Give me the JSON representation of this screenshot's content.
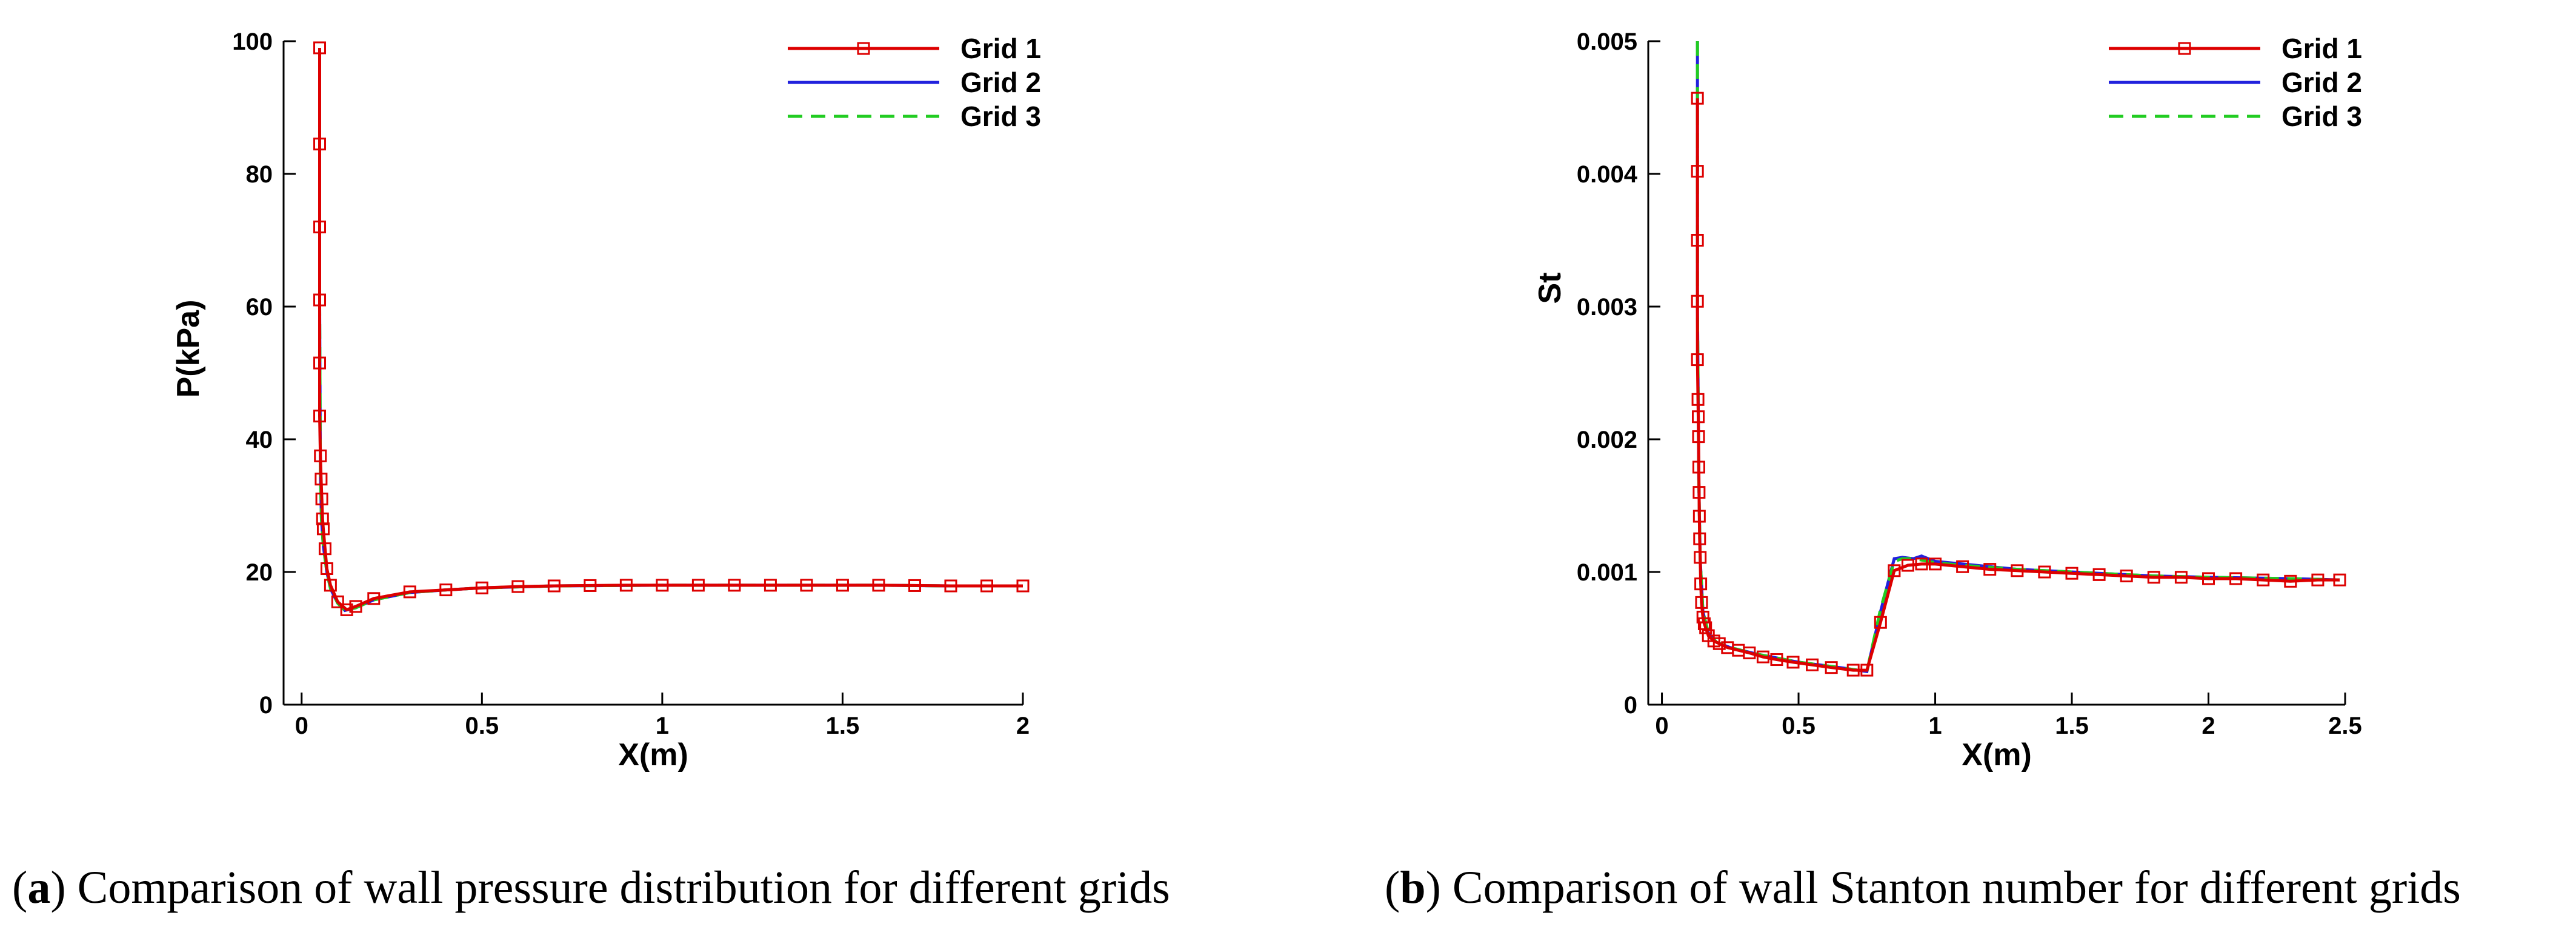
{
  "chart_data": [
    {
      "type": "line",
      "panel": "a",
      "caption_letter": "a",
      "caption_text": "Comparison of wall pressure distribution for different grids",
      "xlabel": "X(m)",
      "ylabel": "P(kPa)",
      "xlim": [
        -0.05,
        2
      ],
      "ylim": [
        0,
        100
      ],
      "xticks": [
        0,
        0.5,
        1,
        1.5,
        2
      ],
      "xtick_labels": [
        "0",
        "0.5",
        "1",
        "1.5",
        "2"
      ],
      "yticks": [
        0,
        20,
        40,
        60,
        80,
        100
      ],
      "ytick_labels": [
        "0",
        "20",
        "40",
        "60",
        "80",
        "100"
      ],
      "legend_position": "top-right",
      "series": [
        {
          "name": "Grid 1",
          "color": "#dd0000",
          "style": "solid",
          "marker": "square",
          "x": [
            0.05,
            0.05,
            0.05,
            0.05,
            0.05,
            0.05,
            0.052,
            0.054,
            0.056,
            0.058,
            0.06,
            0.065,
            0.07,
            0.08,
            0.1,
            0.125,
            0.15,
            0.2,
            0.3,
            0.4,
            0.5,
            0.6,
            0.7,
            0.8,
            0.9,
            1.0,
            1.1,
            1.2,
            1.3,
            1.4,
            1.5,
            1.6,
            1.7,
            1.8,
            1.9,
            2.0
          ],
          "y": [
            99,
            84.5,
            72,
            61,
            51.5,
            43.5,
            37.5,
            34,
            31,
            28,
            26.5,
            23.5,
            20.5,
            18,
            15.5,
            14.3,
            14.8,
            16,
            17,
            17.3,
            17.6,
            17.8,
            17.9,
            17.95,
            18,
            18,
            18,
            18,
            18,
            18,
            18,
            18,
            17.95,
            17.9,
            17.9,
            17.9
          ]
        },
        {
          "name": "Grid 2",
          "color": "#2222dd",
          "style": "solid",
          "marker": "none",
          "x": [
            0.05,
            0.05,
            0.052,
            0.055,
            0.06,
            0.07,
            0.08,
            0.1,
            0.12,
            0.15,
            0.2,
            0.3,
            0.4,
            0.5,
            0.7,
            1.0,
            1.3,
            1.6,
            1.8,
            2.0
          ],
          "y": [
            99,
            60,
            35,
            28,
            24,
            20,
            17.5,
            15.3,
            14.2,
            14.6,
            15.8,
            16.9,
            17.3,
            17.6,
            17.9,
            18,
            18,
            18,
            17.9,
            17.9
          ]
        },
        {
          "name": "Grid 3",
          "color": "#22cc22",
          "style": "dashed",
          "marker": "none",
          "x": [
            0.05,
            0.05,
            0.052,
            0.055,
            0.06,
            0.07,
            0.08,
            0.1,
            0.12,
            0.15,
            0.2,
            0.3,
            0.4,
            0.5,
            0.7,
            1.0,
            1.3,
            1.6,
            1.8,
            2.0
          ],
          "y": [
            99,
            60,
            35,
            28,
            24,
            20,
            17.5,
            15.3,
            14.2,
            14.6,
            15.8,
            16.9,
            17.3,
            17.6,
            17.9,
            18,
            18,
            18,
            17.9,
            17.9
          ]
        }
      ]
    },
    {
      "type": "line",
      "panel": "b",
      "caption_letter": "b",
      "caption_text": "Comparison of wall Stanton number for different grids",
      "xlabel": "X(m)",
      "ylabel": "St",
      "xlim": [
        -0.05,
        2.5
      ],
      "ylim": [
        0,
        0.005
      ],
      "xticks": [
        0,
        0.5,
        1,
        1.5,
        2,
        2.5
      ],
      "xtick_labels": [
        "0",
        "0.5",
        "1",
        "1.5",
        "2",
        "2.5"
      ],
      "yticks": [
        0,
        0.001,
        0.002,
        0.003,
        0.004,
        0.005
      ],
      "ytick_labels": [
        "0",
        "0.001",
        "0.002",
        "0.003",
        "0.004",
        "0.005"
      ],
      "legend_position": "top-right",
      "series": [
        {
          "name": "Grid 1",
          "color": "#dd0000",
          "style": "solid",
          "marker": "square",
          "x": [
            0.13,
            0.13,
            0.13,
            0.13,
            0.13,
            0.132,
            0.133,
            0.134,
            0.135,
            0.136,
            0.137,
            0.138,
            0.14,
            0.142,
            0.145,
            0.15,
            0.155,
            0.16,
            0.17,
            0.19,
            0.21,
            0.24,
            0.28,
            0.32,
            0.37,
            0.42,
            0.48,
            0.55,
            0.62,
            0.7,
            0.75,
            0.8,
            0.85,
            0.9,
            0.95,
            1.0,
            1.1,
            1.2,
            1.3,
            1.4,
            1.5,
            1.6,
            1.7,
            1.8,
            1.9,
            2.0,
            2.1,
            2.2,
            2.3,
            2.4,
            2.48
          ],
          "y": [
            0.00457,
            0.00402,
            0.0035,
            0.00304,
            0.0026,
            0.0023,
            0.00217,
            0.00202,
            0.00179,
            0.0016,
            0.00142,
            0.00125,
            0.00111,
            0.00091,
            0.00077,
            0.00066,
            0.00061,
            0.00058,
            0.00052,
            0.00048,
            0.00046,
            0.00043,
            0.00041,
            0.00039,
            0.00036,
            0.00034,
            0.00032,
            0.0003,
            0.00028,
            0.00026,
            0.00026,
            0.00062,
            0.00101,
            0.00105,
            0.00106,
            0.00106,
            0.00104,
            0.00102,
            0.00101,
            0.001,
            0.00099,
            0.00098,
            0.00097,
            0.00096,
            0.00096,
            0.00095,
            0.00095,
            0.00094,
            0.00093,
            0.00094,
            0.00094
          ]
        },
        {
          "name": "Grid 2",
          "color": "#2222dd",
          "style": "solid",
          "marker": "none",
          "x": [
            0.13,
            0.13,
            0.135,
            0.14,
            0.15,
            0.17,
            0.2,
            0.25,
            0.35,
            0.5,
            0.65,
            0.75,
            0.8,
            0.85,
            0.88,
            0.92,
            0.95,
            1.0,
            1.1,
            1.3,
            1.5,
            1.8,
            2.0,
            2.3,
            2.48
          ],
          "y": [
            0.005,
            0.003,
            0.0017,
            0.0011,
            0.0007,
            0.00054,
            0.00047,
            0.00043,
            0.00038,
            0.00032,
            0.00028,
            0.00025,
            0.0007,
            0.0011,
            0.00111,
            0.0011,
            0.00112,
            0.00108,
            0.00106,
            0.00102,
            0.001,
            0.00097,
            0.00096,
            0.00095,
            0.00094
          ]
        },
        {
          "name": "Grid 3",
          "color": "#22cc22",
          "style": "dashed",
          "marker": "none",
          "x": [
            0.13,
            0.13,
            0.135,
            0.14,
            0.15,
            0.17,
            0.2,
            0.25,
            0.35,
            0.5,
            0.65,
            0.75,
            0.8,
            0.85,
            0.88,
            0.92,
            0.95,
            1.0,
            1.1,
            1.3,
            1.5,
            1.8,
            2.0,
            2.3,
            2.48
          ],
          "y": [
            0.005,
            0.003,
            0.0017,
            0.0011,
            0.0007,
            0.00054,
            0.00047,
            0.00043,
            0.00038,
            0.00032,
            0.00028,
            0.00025,
            0.00072,
            0.00108,
            0.0011,
            0.0011,
            0.00109,
            0.00107,
            0.00105,
            0.00102,
            0.001,
            0.00097,
            0.00096,
            0.00095,
            0.00094
          ]
        }
      ]
    }
  ]
}
